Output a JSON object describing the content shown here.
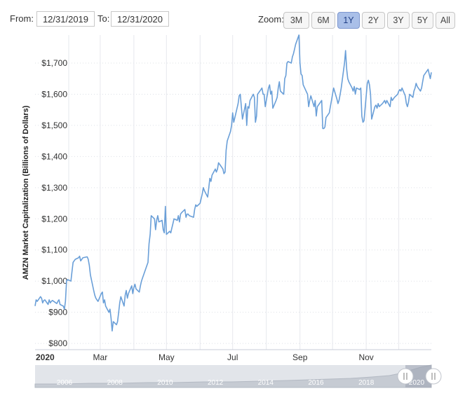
{
  "range": {
    "from_label": "From:",
    "from_value": "12/31/2019",
    "to_label": "To:",
    "to_value": "12/31/2020"
  },
  "zoom": {
    "label": "Zoom:",
    "buttons": [
      "3M",
      "6M",
      "1Y",
      "2Y",
      "3Y",
      "5Y",
      "All"
    ],
    "active": "1Y",
    "active_color": "#a9bfe8"
  },
  "navigator": {
    "year_labels": [
      "2006",
      "2008",
      "2010",
      "2012",
      "2014",
      "2016",
      "2018",
      "2020"
    ],
    "handle_left_icon": "grip-icon",
    "handle_right_icon": "grip-icon"
  },
  "chart_data": {
    "type": "line",
    "title": "",
    "xlabel": "",
    "ylabel": "AMZN Market Capitalization (Billions of Dollars)",
    "y_tick_labels": [
      "$800",
      "$900",
      "$1,000",
      "$1,100",
      "$1,200",
      "$1,300",
      "$1,400",
      "$1,500",
      "$1,600",
      "$1,700"
    ],
    "y_ticks": [
      800,
      900,
      1000,
      1100,
      1200,
      1300,
      1400,
      1500,
      1600,
      1700
    ],
    "ylim": [
      780,
      1790
    ],
    "x_tick_labels": [
      "2020",
      "Mar",
      "May",
      "Jul",
      "Sep",
      "Nov"
    ],
    "x_ticks": [
      "2020-01-01",
      "2020-03-01",
      "2020-05-01",
      "2020-07-01",
      "2020-09-01",
      "2020-11-01"
    ],
    "xlim": [
      "2020-01-01",
      "2020-12-31"
    ],
    "grid": "vertical",
    "line_color": "#6a9fd8",
    "series": [
      {
        "x": [
          "2020-01-01",
          "2020-01-02",
          "2020-01-03",
          "2020-01-06",
          "2020-01-07",
          "2020-01-08",
          "2020-01-09",
          "2020-01-10",
          "2020-01-13",
          "2020-01-14",
          "2020-01-15",
          "2020-01-16",
          "2020-01-17",
          "2020-01-21",
          "2020-01-22",
          "2020-01-23",
          "2020-01-24",
          "2020-01-27",
          "2020-01-28",
          "2020-01-29",
          "2020-01-30",
          "2020-01-31",
          "2020-02-03",
          "2020-02-04",
          "2020-02-05",
          "2020-02-06",
          "2020-02-07",
          "2020-02-10",
          "2020-02-11",
          "2020-02-12",
          "2020-02-13",
          "2020-02-14",
          "2020-02-18",
          "2020-02-19",
          "2020-02-20",
          "2020-02-21",
          "2020-02-24",
          "2020-02-25",
          "2020-02-26",
          "2020-02-27",
          "2020-02-28",
          "2020-03-02",
          "2020-03-03",
          "2020-03-04",
          "2020-03-05",
          "2020-03-06",
          "2020-03-09",
          "2020-03-10",
          "2020-03-11",
          "2020-03-12",
          "2020-03-13",
          "2020-03-16",
          "2020-03-17",
          "2020-03-18",
          "2020-03-19",
          "2020-03-20",
          "2020-03-23",
          "2020-03-24",
          "2020-03-25",
          "2020-03-26",
          "2020-03-27",
          "2020-03-30",
          "2020-03-31",
          "2020-04-01",
          "2020-04-02",
          "2020-04-03",
          "2020-04-06",
          "2020-04-07",
          "2020-04-08",
          "2020-04-09",
          "2020-04-13",
          "2020-04-14",
          "2020-04-15",
          "2020-04-16",
          "2020-04-17",
          "2020-04-20",
          "2020-04-21",
          "2020-04-22",
          "2020-04-23",
          "2020-04-24",
          "2020-04-27",
          "2020-04-28",
          "2020-04-29",
          "2020-04-30",
          "2020-05-01",
          "2020-05-04",
          "2020-05-05",
          "2020-05-06",
          "2020-05-07",
          "2020-05-08",
          "2020-05-11",
          "2020-05-12",
          "2020-05-13",
          "2020-05-14",
          "2020-05-15",
          "2020-05-18",
          "2020-05-19",
          "2020-05-20",
          "2020-05-21",
          "2020-05-22",
          "2020-05-26",
          "2020-05-27",
          "2020-05-28",
          "2020-05-29",
          "2020-06-01",
          "2020-06-02",
          "2020-06-03",
          "2020-06-04",
          "2020-06-05",
          "2020-06-08",
          "2020-06-09",
          "2020-06-10",
          "2020-06-11",
          "2020-06-12",
          "2020-06-15",
          "2020-06-16",
          "2020-06-17",
          "2020-06-18",
          "2020-06-19",
          "2020-06-22",
          "2020-06-23",
          "2020-06-24",
          "2020-06-25",
          "2020-06-26",
          "2020-06-29",
          "2020-06-30",
          "2020-07-01",
          "2020-07-02",
          "2020-07-06",
          "2020-07-07",
          "2020-07-08",
          "2020-07-09",
          "2020-07-10",
          "2020-07-13",
          "2020-07-14",
          "2020-07-15",
          "2020-07-16",
          "2020-07-17",
          "2020-07-20",
          "2020-07-21",
          "2020-07-22",
          "2020-07-23",
          "2020-07-24",
          "2020-07-27",
          "2020-07-28",
          "2020-07-29",
          "2020-07-30",
          "2020-07-31",
          "2020-08-03",
          "2020-08-04",
          "2020-08-05",
          "2020-08-06",
          "2020-08-07",
          "2020-08-10",
          "2020-08-11",
          "2020-08-12",
          "2020-08-13",
          "2020-08-14",
          "2020-08-17",
          "2020-08-18",
          "2020-08-19",
          "2020-08-20",
          "2020-08-21",
          "2020-08-24",
          "2020-08-25",
          "2020-08-26",
          "2020-08-27",
          "2020-08-28",
          "2020-08-31",
          "2020-09-01",
          "2020-09-02",
          "2020-09-03",
          "2020-09-04",
          "2020-09-08",
          "2020-09-09",
          "2020-09-10",
          "2020-09-11",
          "2020-09-14",
          "2020-09-15",
          "2020-09-16",
          "2020-09-17",
          "2020-09-18",
          "2020-09-21",
          "2020-09-22",
          "2020-09-23",
          "2020-09-24",
          "2020-09-25",
          "2020-09-28",
          "2020-09-29",
          "2020-09-30",
          "2020-10-01",
          "2020-10-02",
          "2020-10-05",
          "2020-10-06",
          "2020-10-07",
          "2020-10-08",
          "2020-10-09",
          "2020-10-12",
          "2020-10-13",
          "2020-10-14",
          "2020-10-15",
          "2020-10-16",
          "2020-10-19",
          "2020-10-20",
          "2020-10-21",
          "2020-10-22",
          "2020-10-23",
          "2020-10-26",
          "2020-10-27",
          "2020-10-28",
          "2020-10-29",
          "2020-10-30",
          "2020-11-02",
          "2020-11-03",
          "2020-11-04",
          "2020-11-05",
          "2020-11-06",
          "2020-11-09",
          "2020-11-10",
          "2020-11-11",
          "2020-11-12",
          "2020-11-13",
          "2020-11-16",
          "2020-11-17",
          "2020-11-18",
          "2020-11-19",
          "2020-11-20",
          "2020-11-23",
          "2020-11-24",
          "2020-11-25",
          "2020-11-27",
          "2020-11-30",
          "2020-12-01",
          "2020-12-02",
          "2020-12-03",
          "2020-12-04",
          "2020-12-07",
          "2020-12-08",
          "2020-12-09",
          "2020-12-10",
          "2020-12-11",
          "2020-12-14",
          "2020-12-15",
          "2020-12-16",
          "2020-12-17",
          "2020-12-18",
          "2020-12-21",
          "2020-12-22",
          "2020-12-23",
          "2020-12-24",
          "2020-12-28",
          "2020-12-29",
          "2020-12-30",
          "2020-12-31"
        ],
        "values": [
          920,
          940,
          935,
          950,
          945,
          930,
          938,
          940,
          925,
          940,
          930,
          935,
          938,
          928,
          935,
          940,
          925,
          920,
          910,
          935,
          1000,
          1005,
          1000,
          1030,
          1060,
          1065,
          1070,
          1075,
          1080,
          1065,
          1070,
          1075,
          1078,
          1070,
          1050,
          1020,
          970,
          955,
          945,
          940,
          935,
          960,
          965,
          930,
          940,
          920,
          900,
          910,
          880,
          840,
          870,
          860,
          870,
          900,
          930,
          950,
          920,
          955,
          970,
          945,
          960,
          985,
          960,
          980,
          990,
          975,
          965,
          985,
          1000,
          1010,
          1050,
          1060,
          1120,
          1150,
          1210,
          1200,
          1165,
          1195,
          1210,
          1190,
          1195,
          1165,
          1155,
          1240,
          1150,
          1160,
          1155,
          1170,
          1185,
          1200,
          1195,
          1210,
          1190,
          1215,
          1220,
          1230,
          1205,
          1215,
          1215,
          1210,
          1205,
          1230,
          1245,
          1240,
          1250,
          1265,
          1280,
          1300,
          1290,
          1270,
          1300,
          1330,
          1320,
          1340,
          1360,
          1350,
          1360,
          1380,
          1375,
          1360,
          1345,
          1350,
          1420,
          1450,
          1480,
          1500,
          1540,
          1510,
          1570,
          1595,
          1600,
          1560,
          1520,
          1570,
          1500,
          1560,
          1555,
          1580,
          1600,
          1590,
          1510,
          1530,
          1600,
          1615,
          1620,
          1600,
          1600,
          1560,
          1620,
          1630,
          1600,
          1610,
          1555,
          1580,
          1590,
          1620,
          1640,
          1610,
          1600,
          1650,
          1660,
          1700,
          1705,
          1700,
          1720,
          1730,
          1745,
          1760,
          1790,
          1700,
          1665,
          1660,
          1630,
          1600,
          1560,
          1580,
          1595,
          1560,
          1580,
          1530,
          1560,
          1565,
          1580,
          1490,
          1490,
          1495,
          1525,
          1540,
          1560,
          1580,
          1600,
          1620,
          1585,
          1570,
          1580,
          1600,
          1620,
          1700,
          1740,
          1680,
          1650,
          1640,
          1620,
          1610,
          1625,
          1600,
          1620,
          1615,
          1620,
          1530,
          1510,
          1515,
          1635,
          1645,
          1630,
          1600,
          1520,
          1560,
          1565,
          1555,
          1570,
          1560,
          1570,
          1575,
          1580,
          1570,
          1580,
          1560,
          1590,
          1580,
          1590,
          1600,
          1610,
          1615,
          1610,
          1620,
          1595,
          1570,
          1560,
          1575,
          1600,
          1590,
          1610,
          1620,
          1635,
          1625,
          1610,
          1620,
          1640,
          1660,
          1680,
          1665,
          1650,
          1670
        ]
      }
    ]
  }
}
